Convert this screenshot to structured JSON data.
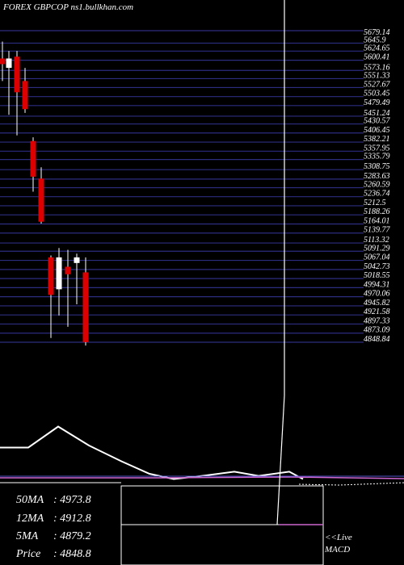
{
  "header": {
    "text": "FOREX  GBPCOP ns1.bullkhan.com"
  },
  "chart_data": {
    "type": "candlestick",
    "price_axis_top_label": "5679.14",
    "price_levels": [
      "5645.9",
      "5624.65",
      "5600.41",
      "5573.16",
      "5551.33",
      "5527.67",
      "5503.45",
      "5479.49",
      "5451.24",
      "5430.57",
      "5406.45",
      "5382.21",
      "5357.95",
      "5335.79",
      "5308.75",
      "5283.63",
      "5260.59",
      "5236.74",
      "5212.5",
      "5188.26",
      "5164.01",
      "5139.77",
      "5113.32",
      "5091.29",
      "5067.04",
      "5042.73",
      "5018.55",
      "4994.31",
      "4970.06",
      "4945.82",
      "4921.58",
      "4897.33",
      "4873.09",
      "4848.84"
    ],
    "candles": [
      {
        "open": 5605,
        "high": 5650,
        "low": 5545,
        "close": 5590
      },
      {
        "open": 5580,
        "high": 5625,
        "low": 5455,
        "close": 5605
      },
      {
        "open": 5610,
        "high": 5625,
        "low": 5400,
        "close": 5515
      },
      {
        "open": 5545,
        "high": 5580,
        "low": 5460,
        "close": 5470
      },
      {
        "open": 5385,
        "high": 5395,
        "low": 5250,
        "close": 5290
      },
      {
        "open": 5285,
        "high": 5315,
        "low": 5165,
        "close": 5170
      },
      {
        "open": 5075,
        "high": 5080,
        "low": 4860,
        "close": 4975
      },
      {
        "open": 4990,
        "high": 5100,
        "low": 4920,
        "close": 5075
      },
      {
        "open": 5050,
        "high": 5095,
        "low": 4890,
        "close": 5030
      },
      {
        "open": 5060,
        "high": 5085,
        "low": 4950,
        "close": 5075
      },
      {
        "open": 5035,
        "high": 5075,
        "low": 4840,
        "close": 4849
      }
    ],
    "macd_line": [
      0.35,
      0.35,
      0.55,
      0.37,
      0.22,
      0.1,
      0.05,
      0.08,
      0.12,
      0.08,
      0.12,
      0.05
    ],
    "stats": [
      {
        "label": "50MA",
        "value": ": 4973.8"
      },
      {
        "label": "12MA",
        "value": ": 4912.8"
      },
      {
        "label": "5MA",
        "value": ": 4879.2"
      },
      {
        "label": "Price",
        "value": ": 4848.8"
      }
    ],
    "colors": {
      "up": "#ffffff",
      "down": "#dd0000",
      "grid": "#2c2c80",
      "macd": "#ffffff",
      "signal": "#cc66cc"
    }
  },
  "footer": {
    "live": "<<Live",
    "macd": "MACD"
  }
}
